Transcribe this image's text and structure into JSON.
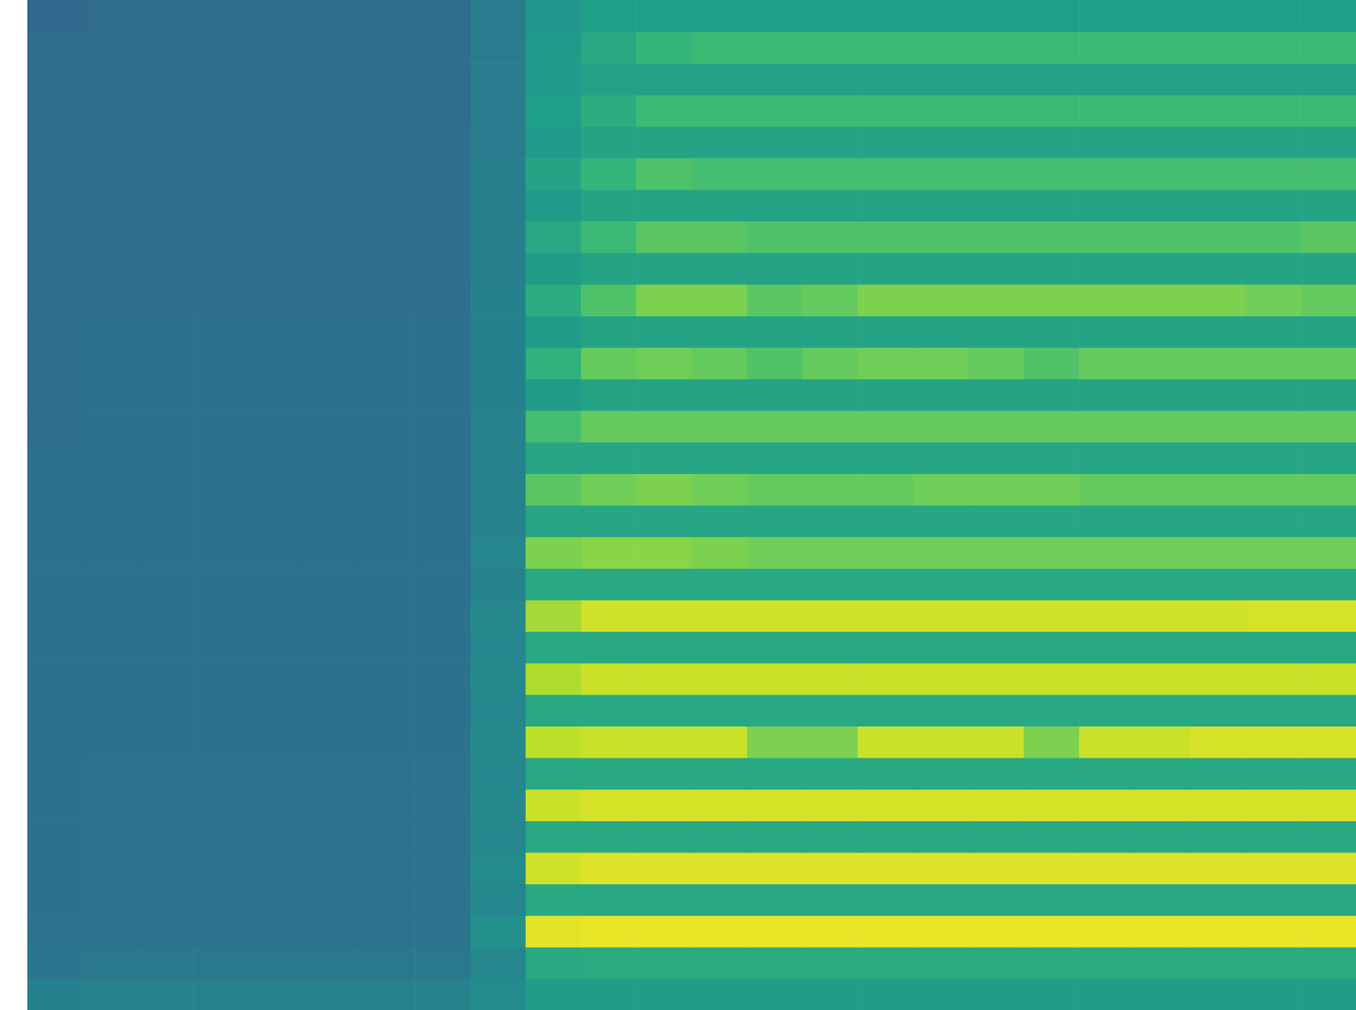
{
  "chart_data": {
    "type": "heatmap",
    "xlim": [
      0,
      24
    ],
    "ylim": [
      0,
      32
    ],
    "tick_labels": false,
    "colorbar_range": [
      0,
      100
    ],
    "z": [
      [
        44,
        45,
        45,
        45,
        45,
        45,
        45,
        45,
        48,
        55,
        55,
        55,
        55,
        55,
        55,
        55,
        55,
        55,
        55,
        55,
        55,
        55,
        55,
        55
      ],
      [
        39,
        40,
        40,
        40,
        40,
        40,
        40,
        40,
        46,
        60,
        61,
        61,
        61,
        61,
        61,
        61,
        61,
        61,
        61,
        61,
        61,
        61,
        61,
        61
      ],
      [
        38,
        38,
        38,
        38,
        38,
        38,
        38,
        38,
        50,
        96,
        97,
        97,
        97,
        97,
        97,
        97,
        97,
        97,
        97,
        97,
        97,
        97,
        97,
        97
      ],
      [
        37,
        38,
        38,
        38,
        38,
        38,
        38,
        38,
        46,
        60,
        60,
        60,
        60,
        60,
        60,
        60,
        60,
        60,
        60,
        60,
        60,
        60,
        60,
        60
      ],
      [
        37,
        38,
        38,
        38,
        38,
        38,
        38,
        38,
        48,
        93,
        95,
        95,
        95,
        95,
        95,
        95,
        95,
        95,
        95,
        95,
        95,
        95,
        95,
        95
      ],
      [
        37,
        38,
        38,
        38,
        38,
        38,
        38,
        38,
        46,
        60,
        60,
        60,
        60,
        60,
        60,
        60,
        60,
        60,
        60,
        60,
        60,
        60,
        60,
        60
      ],
      [
        37,
        38,
        38,
        38,
        38,
        38,
        38,
        38,
        47,
        92,
        94,
        94,
        94,
        94,
        94,
        94,
        94,
        94,
        94,
        94,
        94,
        94,
        94,
        94
      ],
      [
        37,
        38,
        38,
        38,
        38,
        38,
        38,
        38,
        46,
        60,
        60,
        60,
        60,
        60,
        60,
        60,
        60,
        60,
        60,
        60,
        60,
        60,
        60,
        60
      ],
      [
        37,
        37,
        37,
        37,
        37,
        37,
        37,
        37,
        47,
        90,
        92,
        92,
        92,
        80,
        80,
        92,
        92,
        92,
        80,
        92,
        92,
        94,
        94,
        94
      ],
      [
        37,
        37,
        37,
        37,
        37,
        37,
        37,
        37,
        46,
        60,
        60,
        60,
        60,
        60,
        60,
        60,
        60,
        60,
        60,
        60,
        60,
        60,
        60,
        60
      ],
      [
        37,
        37,
        37,
        37,
        37,
        37,
        37,
        37,
        47,
        88,
        92,
        92,
        92,
        92,
        92,
        92,
        92,
        92,
        92,
        92,
        92,
        92,
        92,
        92
      ],
      [
        37,
        37,
        37,
        37,
        37,
        37,
        37,
        37,
        46,
        60,
        60,
        60,
        60,
        60,
        60,
        60,
        60,
        60,
        60,
        60,
        60,
        60,
        60,
        60
      ],
      [
        37,
        37,
        37,
        37,
        37,
        37,
        37,
        37,
        47,
        86,
        93,
        93,
        93,
        93,
        93,
        93,
        93,
        93,
        93,
        93,
        93,
        93,
        94,
        94
      ],
      [
        37,
        37,
        37,
        37,
        37,
        37,
        37,
        37,
        45,
        60,
        60,
        60,
        60,
        60,
        60,
        60,
        60,
        60,
        60,
        60,
        60,
        60,
        60,
        60
      ],
      [
        37,
        37,
        37,
        37,
        37,
        37,
        37,
        37,
        46,
        80,
        82,
        82,
        80,
        78,
        78,
        78,
        78,
        78,
        78,
        78,
        78,
        78,
        78,
        78
      ],
      [
        37,
        37,
        37,
        37,
        37,
        37,
        37,
        37,
        45,
        59,
        59,
        59,
        59,
        59,
        59,
        59,
        59,
        59,
        59,
        59,
        59,
        59,
        59,
        59
      ],
      [
        37,
        37,
        37,
        37,
        37,
        37,
        37,
        37,
        45,
        74,
        78,
        80,
        78,
        76,
        76,
        76,
        78,
        78,
        78,
        76,
        76,
        76,
        76,
        76
      ],
      [
        37,
        37,
        37,
        37,
        37,
        37,
        37,
        37,
        45,
        59,
        59,
        59,
        59,
        59,
        59,
        59,
        59,
        59,
        59,
        59,
        59,
        59,
        59,
        59
      ],
      [
        36,
        37,
        37,
        37,
        37,
        37,
        37,
        37,
        45,
        70,
        76,
        76,
        76,
        76,
        76,
        76,
        76,
        76,
        76,
        76,
        76,
        76,
        76,
        76
      ],
      [
        36,
        37,
        37,
        37,
        37,
        37,
        37,
        37,
        44,
        55,
        58,
        58,
        58,
        58,
        58,
        58,
        58,
        58,
        58,
        58,
        58,
        58,
        58,
        58
      ],
      [
        36,
        37,
        37,
        37,
        37,
        37,
        37,
        37,
        44,
        64,
        76,
        78,
        76,
        72,
        76,
        78,
        78,
        76,
        72,
        76,
        76,
        76,
        76,
        76
      ],
      [
        36,
        37,
        37,
        37,
        37,
        37,
        37,
        37,
        44,
        55,
        58,
        58,
        58,
        58,
        58,
        58,
        58,
        58,
        58,
        58,
        58,
        58,
        58,
        58
      ],
      [
        36,
        36,
        36,
        36,
        36,
        36,
        36,
        36,
        44,
        62,
        72,
        80,
        80,
        74,
        76,
        80,
        80,
        80,
        80,
        80,
        80,
        80,
        78,
        76
      ],
      [
        36,
        36,
        36,
        36,
        36,
        36,
        36,
        36,
        43,
        55,
        58,
        58,
        58,
        58,
        58,
        58,
        58,
        58,
        58,
        58,
        58,
        58,
        58,
        58
      ],
      [
        36,
        36,
        36,
        36,
        36,
        36,
        36,
        36,
        43,
        60,
        68,
        74,
        74,
        72,
        72,
        72,
        72,
        72,
        72,
        72,
        72,
        72,
        72,
        74
      ],
      [
        36,
        36,
        36,
        36,
        36,
        36,
        36,
        36,
        43,
        54,
        58,
        58,
        58,
        58,
        58,
        58,
        58,
        58,
        58,
        58,
        58,
        58,
        58,
        58
      ],
      [
        35,
        36,
        36,
        36,
        36,
        36,
        36,
        36,
        43,
        58,
        66,
        72,
        70,
        70,
        70,
        70,
        70,
        70,
        70,
        70,
        70,
        70,
        70,
        70
      ],
      [
        35,
        36,
        36,
        36,
        36,
        36,
        36,
        36,
        42,
        54,
        58,
        58,
        58,
        58,
        58,
        58,
        58,
        58,
        58,
        58,
        58,
        58,
        58,
        58
      ],
      [
        35,
        35,
        35,
        35,
        35,
        35,
        35,
        35,
        42,
        56,
        62,
        68,
        68,
        68,
        68,
        68,
        68,
        68,
        68,
        68,
        68,
        68,
        68,
        68
      ],
      [
        35,
        35,
        35,
        35,
        35,
        35,
        35,
        35,
        42,
        54,
        57,
        57,
        57,
        57,
        57,
        57,
        57,
        57,
        57,
        57,
        57,
        57,
        57,
        57
      ],
      [
        35,
        35,
        35,
        35,
        35,
        35,
        35,
        35,
        42,
        54,
        60,
        66,
        68,
        68,
        68,
        68,
        68,
        68,
        68,
        68,
        68,
        68,
        68,
        68
      ],
      [
        34,
        35,
        35,
        35,
        35,
        35,
        35,
        35,
        42,
        52,
        56,
        56,
        56,
        56,
        56,
        56,
        56,
        56,
        56,
        56,
        56,
        56,
        56,
        56
      ]
    ]
  }
}
